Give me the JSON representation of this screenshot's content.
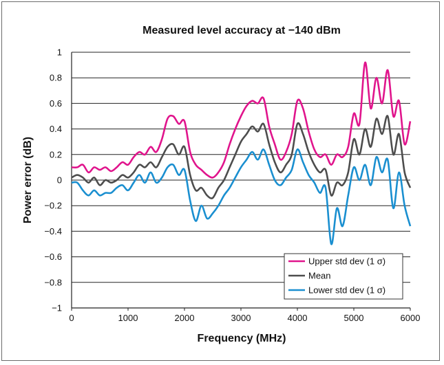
{
  "chart_data": {
    "type": "line",
    "title": "Measured level accuracy at −140 dBm",
    "xlabel": "Frequency (MHz)",
    "ylabel": "Power error (dB)",
    "xlim": [
      0,
      6000
    ],
    "ylim": [
      -1,
      1
    ],
    "x_ticks": [
      "0",
      "1000",
      "2000",
      "3000",
      "4000",
      "5000",
      "6000"
    ],
    "y_ticks": [
      "1",
      "0.8",
      "0.6",
      "0.4",
      "0.2",
      "0",
      "−0.2",
      "−0.4",
      "−0.6",
      "−0.8",
      "−1"
    ],
    "grid": "horizontal",
    "legend_position": "bottom-right",
    "x": [
      0,
      100,
      200,
      300,
      400,
      500,
      600,
      700,
      800,
      900,
      1000,
      1100,
      1200,
      1300,
      1400,
      1500,
      1600,
      1700,
      1800,
      1900,
      2000,
      2100,
      2200,
      2300,
      2400,
      2500,
      2600,
      2700,
      2800,
      2900,
      3000,
      3100,
      3200,
      3300,
      3400,
      3500,
      3600,
      3700,
      3800,
      3900,
      4000,
      4100,
      4200,
      4300,
      4400,
      4500,
      4600,
      4700,
      4800,
      4900,
      5000,
      5100,
      5200,
      5300,
      5400,
      5500,
      5600,
      5700,
      5800,
      5900,
      6000
    ],
    "series": [
      {
        "name": "Upper std dev (1 σ)",
        "color": "#e0148c",
        "values": [
          0.1,
          0.1,
          0.12,
          0.06,
          0.1,
          0.08,
          0.1,
          0.07,
          0.1,
          0.14,
          0.12,
          0.18,
          0.22,
          0.2,
          0.26,
          0.22,
          0.32,
          0.48,
          0.5,
          0.44,
          0.46,
          0.22,
          0.12,
          0.08,
          0.04,
          0.02,
          0.06,
          0.14,
          0.28,
          0.4,
          0.5,
          0.58,
          0.62,
          0.6,
          0.64,
          0.42,
          0.28,
          0.16,
          0.22,
          0.36,
          0.62,
          0.56,
          0.38,
          0.24,
          0.18,
          0.2,
          0.12,
          0.2,
          0.18,
          0.26,
          0.52,
          0.44,
          0.92,
          0.56,
          0.8,
          0.6,
          0.86,
          0.5,
          0.62,
          0.28,
          0.46
        ]
      },
      {
        "name": "Mean",
        "color": "#4d4d4d",
        "values": [
          0.02,
          0.04,
          0.02,
          -0.02,
          0.02,
          -0.04,
          0.0,
          -0.02,
          0.0,
          0.04,
          0.02,
          0.06,
          0.12,
          0.1,
          0.14,
          0.1,
          0.18,
          0.26,
          0.28,
          0.2,
          0.26,
          0.04,
          -0.08,
          -0.06,
          -0.12,
          -0.14,
          -0.06,
          0.0,
          0.1,
          0.2,
          0.3,
          0.36,
          0.42,
          0.38,
          0.44,
          0.28,
          0.14,
          0.06,
          0.12,
          0.2,
          0.44,
          0.36,
          0.22,
          0.12,
          0.06,
          0.08,
          -0.12,
          -0.02,
          -0.04,
          0.06,
          0.32,
          0.2,
          0.4,
          0.26,
          0.48,
          0.36,
          0.5,
          0.2,
          0.36,
          0.06,
          -0.06
        ]
      },
      {
        "name": "Lower std dev (1 σ)",
        "color": "#1a8fd0",
        "values": [
          -0.02,
          -0.02,
          -0.08,
          -0.12,
          -0.08,
          -0.12,
          -0.1,
          -0.1,
          -0.06,
          -0.04,
          -0.08,
          -0.02,
          0.04,
          -0.02,
          0.06,
          -0.02,
          0.02,
          0.1,
          0.12,
          0.04,
          0.08,
          -0.16,
          -0.32,
          -0.2,
          -0.3,
          -0.26,
          -0.2,
          -0.12,
          -0.06,
          0.02,
          0.1,
          0.16,
          0.22,
          0.16,
          0.24,
          0.12,
          0.0,
          -0.04,
          0.02,
          0.08,
          0.24,
          0.14,
          0.04,
          -0.02,
          -0.1,
          -0.06,
          -0.5,
          -0.22,
          -0.36,
          -0.12,
          0.1,
          0.0,
          0.12,
          -0.04,
          0.18,
          0.06,
          0.16,
          -0.22,
          0.06,
          -0.2,
          -0.36
        ]
      }
    ]
  }
}
